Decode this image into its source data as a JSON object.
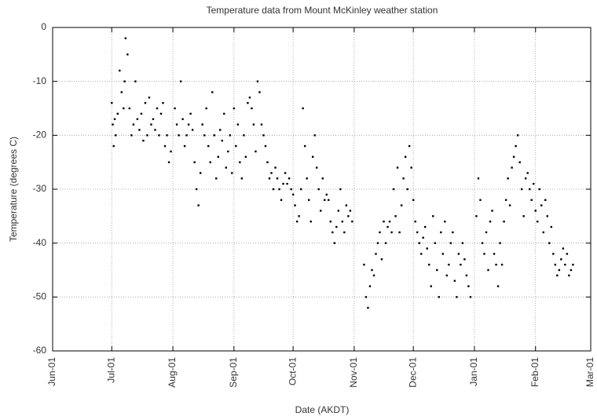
{
  "chart_data": {
    "type": "scatter",
    "title": "Temperature data from Mount McKinley weather station",
    "x_label": "Date (AKDT)",
    "y_label": "Temperature (degrees C)",
    "color": "#000000",
    "grid": true,
    "xlim": [
      0,
      273
    ],
    "xticks": [
      {
        "value": 0,
        "label": "Jun-01"
      },
      {
        "value": 30,
        "label": "Jul-01"
      },
      {
        "value": 61,
        "label": "Aug-01"
      },
      {
        "value": 92,
        "label": "Sep-01"
      },
      {
        "value": 122,
        "label": "Oct-01"
      },
      {
        "value": 153,
        "label": "Nov-01"
      },
      {
        "value": 183,
        "label": "Dec-01"
      },
      {
        "value": 214,
        "label": "Jan-01"
      },
      {
        "value": 245,
        "label": "Feb-01"
      },
      {
        "value": 273,
        "label": "Mar-01"
      }
    ],
    "ylim": [
      -60,
      0
    ],
    "yticks": [
      0,
      -10,
      -20,
      -30,
      -40,
      -50,
      -60
    ],
    "x": [
      30,
      30.5,
      31,
      31.5,
      32,
      33,
      34,
      35,
      36,
      36.5,
      37,
      38,
      39,
      40,
      41,
      42,
      43,
      44,
      45,
      46,
      47,
      48,
      49,
      50,
      51,
      52,
      53,
      54,
      55,
      56,
      57,
      58,
      59,
      60,
      62,
      63,
      64,
      65,
      66,
      67,
      68,
      69,
      70,
      71,
      72,
      73,
      74,
      75,
      76,
      77,
      78,
      79,
      80,
      81,
      82,
      83,
      84,
      85,
      86,
      87,
      88,
      89,
      90,
      91,
      92,
      93,
      94,
      95,
      96,
      97,
      98,
      99,
      100,
      101,
      102,
      103,
      104,
      105,
      106,
      107,
      108,
      109,
      110,
      111,
      112,
      113,
      114,
      115,
      116,
      117,
      118,
      119,
      120,
      121,
      122,
      123,
      124,
      125,
      126,
      127,
      128,
      129,
      130,
      131,
      132,
      133,
      134,
      135,
      136,
      137,
      138,
      139,
      140,
      141,
      142,
      143,
      144,
      145,
      146,
      147,
      148,
      149,
      150,
      151,
      152,
      158,
      159,
      160,
      161,
      162,
      163,
      164,
      165,
      166,
      167,
      168,
      169,
      170,
      171,
      172,
      173,
      174,
      175,
      176,
      177,
      178,
      179,
      180,
      181,
      182,
      183,
      184,
      185,
      186,
      187,
      188,
      189,
      190,
      191,
      192,
      193,
      194,
      195,
      196,
      197,
      198,
      199,
      200,
      201,
      202,
      203,
      204,
      205,
      206,
      207,
      208,
      209,
      210,
      211,
      212,
      215,
      216,
      217,
      218,
      219,
      220,
      221,
      222,
      223,
      224,
      225,
      226,
      227,
      228,
      229,
      230,
      231,
      232,
      233,
      234,
      235,
      236,
      237,
      238,
      239,
      240,
      241,
      242,
      243,
      244,
      245,
      246,
      247,
      248,
      249,
      250,
      251,
      252,
      253,
      254,
      255,
      256,
      257,
      258,
      259,
      260,
      261,
      262,
      263,
      264
    ],
    "values": [
      -14,
      -18,
      -22,
      -17,
      -20,
      -16,
      -8,
      -12,
      -15,
      -10,
      -2,
      -5,
      -15,
      -20,
      -18,
      -10,
      -17,
      -19,
      -16,
      -21,
      -14,
      -20,
      -13,
      -18,
      -17,
      -19,
      -15,
      -20,
      -16,
      -14,
      -22,
      -20,
      -25,
      -23,
      -15,
      -18,
      -20,
      -10,
      -17,
      -22,
      -20,
      -18,
      -16,
      -19,
      -25,
      -30,
      -33,
      -27,
      -18,
      -20,
      -15,
      -22,
      -25,
      -12,
      -20,
      -28,
      -24,
      -19,
      -21,
      -16,
      -26,
      -23,
      -20,
      -27,
      -15,
      -22,
      -18,
      -25,
      -28,
      -20,
      -24,
      -14,
      -13,
      -15,
      -18,
      -23,
      -10,
      -12,
      -18,
      -20,
      -22,
      -25,
      -28,
      -27,
      -30,
      -26,
      -28,
      -30,
      -32,
      -29,
      -27,
      -29,
      -28,
      -30,
      -31,
      -33,
      -36,
      -35,
      -30,
      -15,
      -22,
      -28,
      -32,
      -36,
      -24,
      -20,
      -26,
      -30,
      -34,
      -28,
      -32,
      -31,
      -32,
      -36,
      -38,
      -40,
      -37,
      -34,
      -30,
      -36,
      -38,
      -33,
      -35,
      -34,
      -36,
      -44,
      -50,
      -52,
      -48,
      -45,
      -46,
      -42,
      -40,
      -38,
      -43,
      -36,
      -40,
      -37,
      -36,
      -38,
      -30,
      -35,
      -26,
      -38,
      -33,
      -28,
      -24,
      -30,
      -22,
      -26,
      -32,
      -36,
      -38,
      -40,
      -42,
      -39,
      -37,
      -41,
      -44,
      -48,
      -35,
      -40,
      -45,
      -50,
      -38,
      -42,
      -36,
      -46,
      -44,
      -40,
      -38,
      -47,
      -50,
      -42,
      -44,
      -40,
      -43,
      -46,
      -48,
      -50,
      -35,
      -28,
      -32,
      -40,
      -42,
      -38,
      -45,
      -36,
      -34,
      -42,
      -44,
      -48,
      -40,
      -44,
      -36,
      -32,
      -28,
      -33,
      -26,
      -24,
      -22,
      -20,
      -25,
      -30,
      -35,
      -28,
      -27,
      -30,
      -32,
      -29,
      -34,
      -36,
      -30,
      -33,
      -38,
      -32,
      -35,
      -40,
      -37,
      -42,
      -44,
      -46,
      -45,
      -43,
      -41,
      -44,
      -42,
      -46,
      -45,
      -44
    ]
  }
}
